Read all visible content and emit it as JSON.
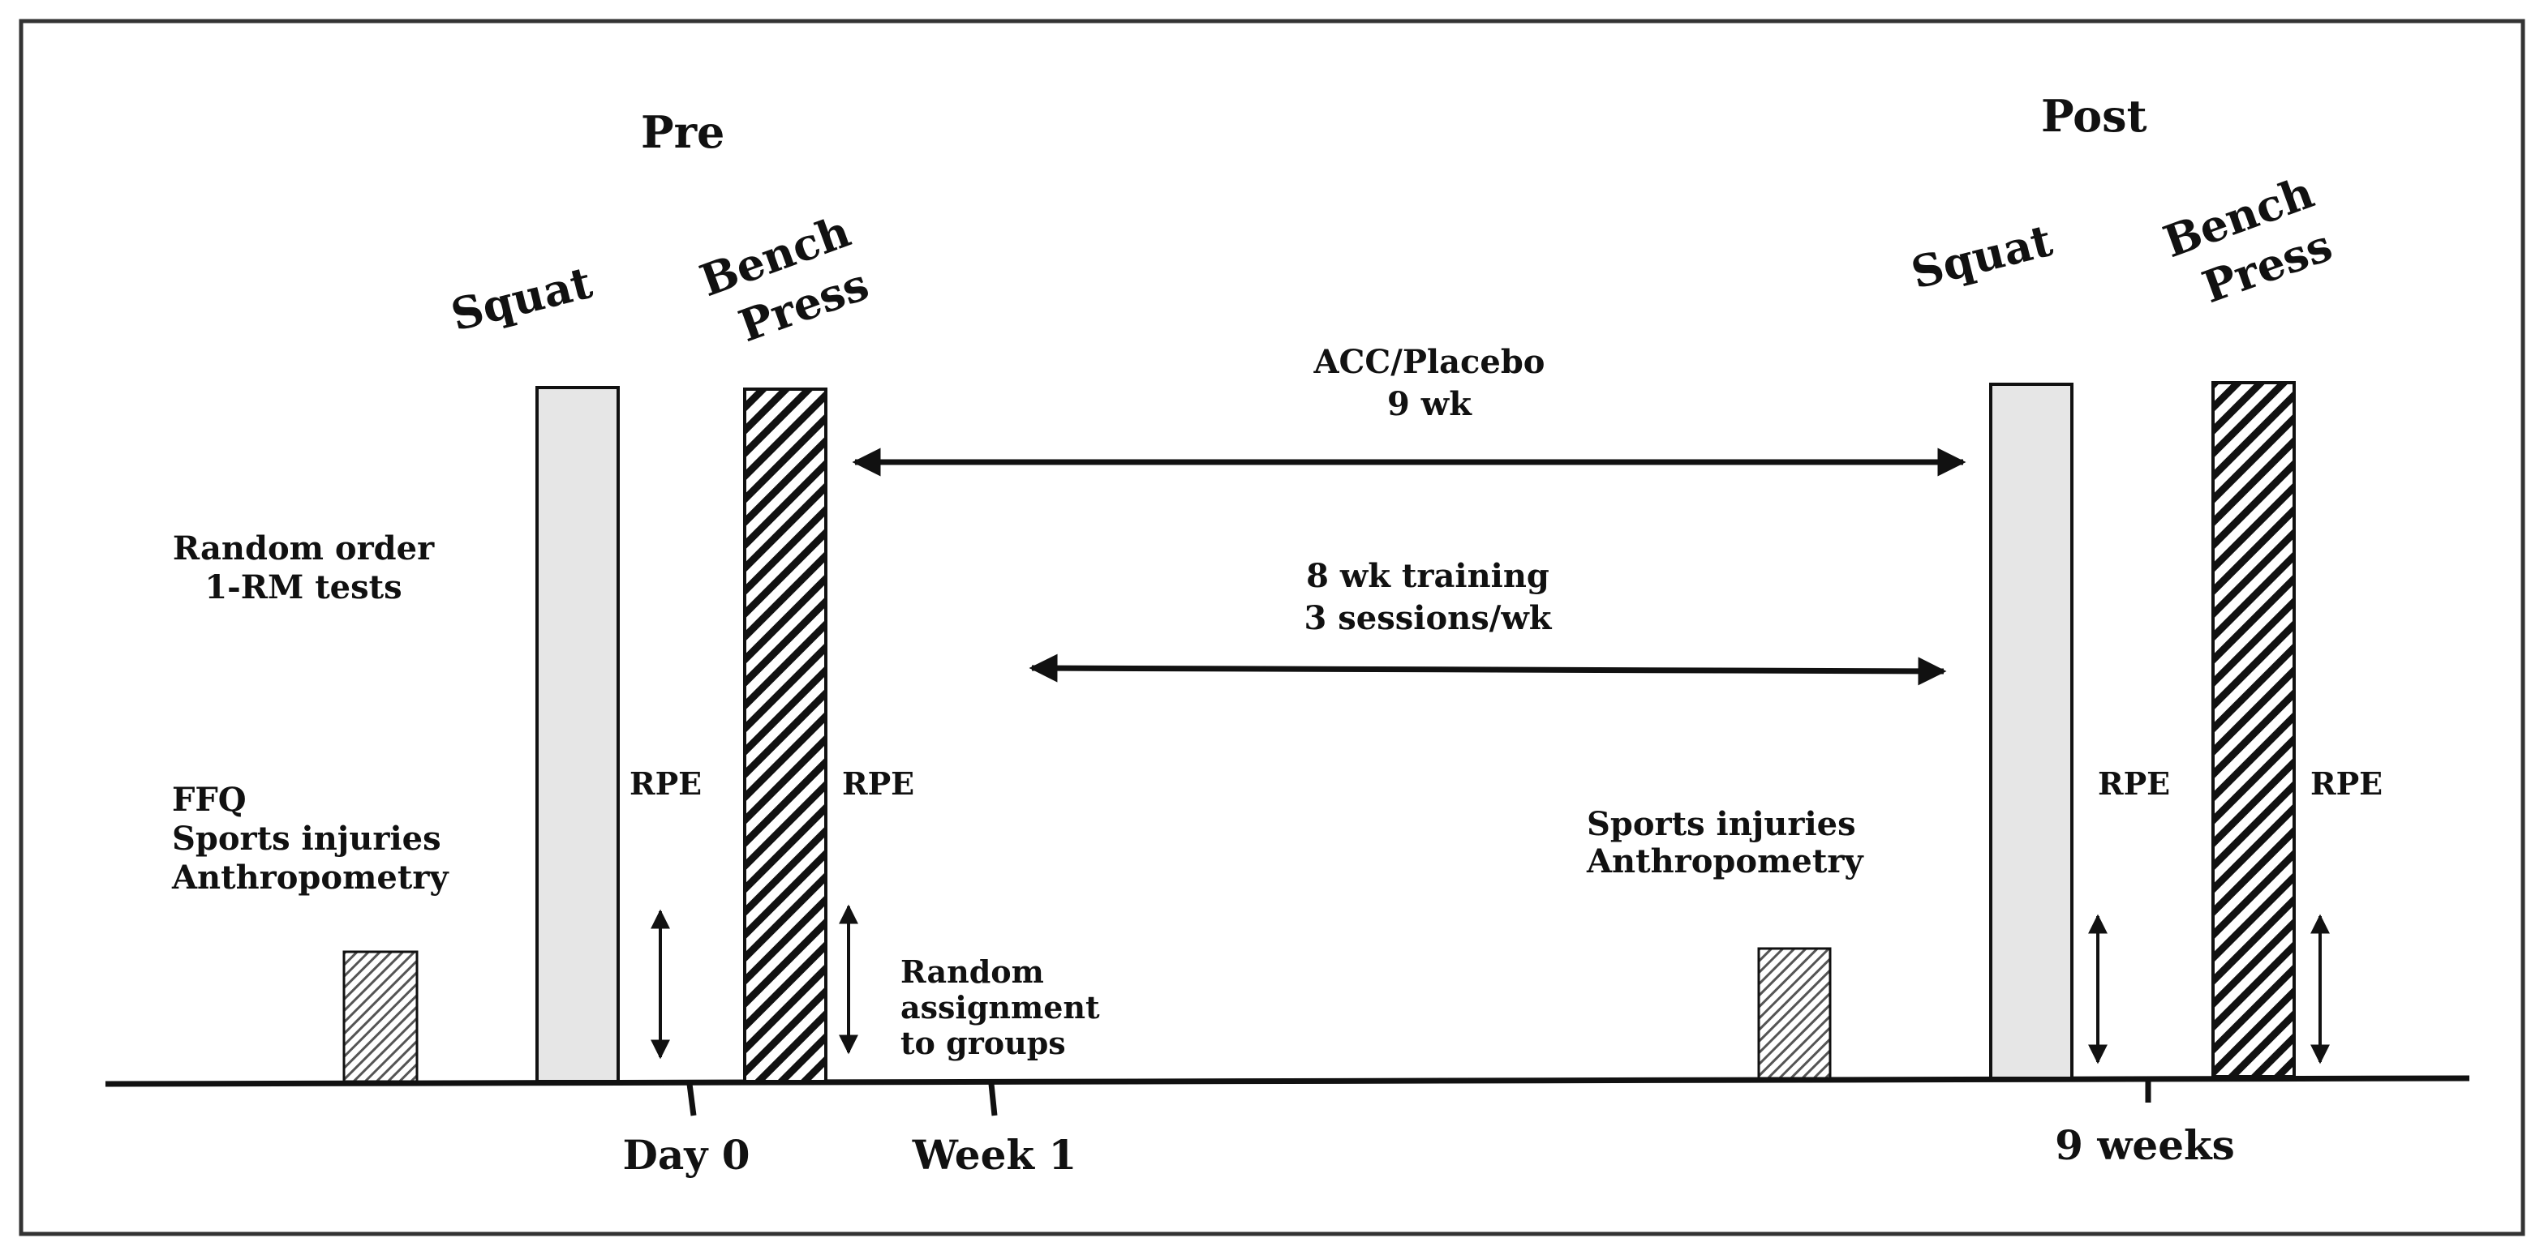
{
  "phases": {
    "pre": "Pre",
    "post": "Post"
  },
  "tests": {
    "squat": "Squat",
    "bench_line1": "Bench",
    "bench_line2": "Press"
  },
  "rpe_label": "RPE",
  "pre_notes": {
    "random_order_line1": "Random order",
    "random_order_line2": "1-RM tests",
    "baseline_line1": "FFQ",
    "baseline_line2": "Sports injuries",
    "baseline_line3": "Anthropometry"
  },
  "post_notes": {
    "line1": "Sports injuries",
    "line2": "Anthropometry"
  },
  "assignment": {
    "line1": "Random",
    "line2": "assignment",
    "line3": "to groups"
  },
  "supplement_arrow": {
    "line1": "ACC/Placebo",
    "line2": "9 wk"
  },
  "training_arrow": {
    "line1": "8 wk training",
    "line2": "3 sessions/wk"
  },
  "timeline_ticks": [
    "Day 0",
    "Week 1",
    "9 weeks"
  ],
  "colors": {
    "squat_fill": "#e6e6e6",
    "line": "#111111",
    "border": "#333333"
  }
}
